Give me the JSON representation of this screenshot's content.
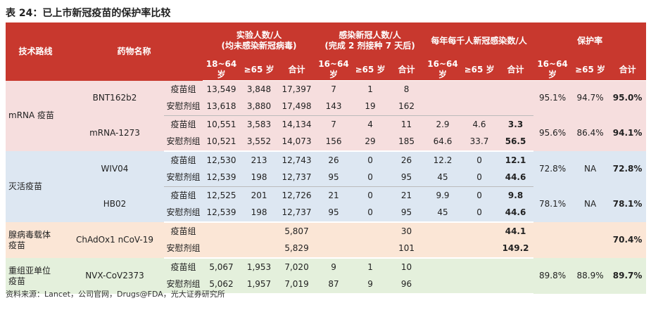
{
  "title": "表 24：已上市新冠疫苗的保护率比较",
  "header": {
    "route": "技术路线",
    "drug": "药物名称",
    "groups": [
      "实验人数/人\n(均未感染新冠病毒)",
      "感染新冠人数/人\n(完成 2 剂接种 7 天后)",
      "每年每千人新冠感染数/人",
      "保护率"
    ],
    "sub": [
      "18~64 岁",
      "≥65 岁",
      "合计",
      "16~64 岁",
      "≥65 岁",
      "合计",
      "16~64 岁",
      "≥65 岁",
      "合计",
      "16~64 岁",
      "≥65 岁",
      "合计"
    ]
  },
  "sections": [
    {
      "route": "mRNA 疫苗",
      "drugs": [
        {
          "name": "BNT162b2",
          "protection": [
            "95.1%",
            "94.7%",
            "95.0%"
          ],
          "rows": [
            {
              "group": "疫苗组",
              "trial": [
                "13,549",
                "3,848",
                "17,397"
              ],
              "infected": [
                "7",
                "1",
                "8"
              ],
              "per_thousand": [
                null,
                null,
                null
              ]
            },
            {
              "group": "安慰剂组",
              "trial": [
                "13,618",
                "3,880",
                "17,498"
              ],
              "infected": [
                "143",
                "19",
                "162"
              ],
              "per_thousand": [
                null,
                null,
                null
              ]
            }
          ]
        },
        {
          "name": "mRNA-1273",
          "protection": [
            "95.6%",
            "86.4%",
            "94.1%"
          ],
          "rows": [
            {
              "group": "疫苗组",
              "trial": [
                "10,551",
                "3,583",
                "14,134"
              ],
              "infected": [
                "7",
                "4",
                "11"
              ],
              "per_thousand": [
                "2.9",
                "4.6",
                "3.3"
              ]
            },
            {
              "group": "安慰剂组",
              "trial": [
                "10,521",
                "3,552",
                "14,073"
              ],
              "infected": [
                "156",
                "29",
                "185"
              ],
              "per_thousand": [
                "64.6",
                "33.7",
                "56.5"
              ]
            }
          ]
        }
      ]
    },
    {
      "route": "灭活疫苗",
      "drugs": [
        {
          "name": "WIV04",
          "protection": [
            "72.8%",
            "NA",
            "72.8%"
          ],
          "rows": [
            {
              "group": "疫苗组",
              "trial": [
                "12,530",
                "213",
                "12,743"
              ],
              "infected": [
                "26",
                "0",
                "26"
              ],
              "per_thousand": [
                "12.2",
                "0",
                "12.1"
              ]
            },
            {
              "group": "安慰剂组",
              "trial": [
                "12,539",
                "198",
                "12,737"
              ],
              "infected": [
                "95",
                "0",
                "95"
              ],
              "per_thousand": [
                "45",
                "0",
                "44.6"
              ]
            }
          ]
        },
        {
          "name": "HB02",
          "protection": [
            "78.1%",
            "NA",
            "78.1%"
          ],
          "rows": [
            {
              "group": "疫苗组",
              "trial": [
                "12,525",
                "201",
                "12,726"
              ],
              "infected": [
                "21",
                "0",
                "21"
              ],
              "per_thousand": [
                "9.9",
                "0",
                "9.8"
              ]
            },
            {
              "group": "安慰剂组",
              "trial": [
                "12,539",
                "198",
                "12,737"
              ],
              "infected": [
                "95",
                "0",
                "95"
              ],
              "per_thousand": [
                "45",
                "0",
                "44.6"
              ]
            }
          ]
        }
      ]
    },
    {
      "route": "腺病毒载体\n疫苗",
      "drugs": [
        {
          "name": "ChAdOx1 nCoV-19",
          "protection": [
            null,
            null,
            "70.4%"
          ],
          "rows": [
            {
              "group": "疫苗组",
              "trial": [
                null,
                null,
                "5,807"
              ],
              "infected": [
                null,
                null,
                "30"
              ],
              "per_thousand": [
                null,
                null,
                "44.1"
              ]
            },
            {
              "group": "安慰剂组",
              "trial": [
                null,
                null,
                "5,829"
              ],
              "infected": [
                null,
                null,
                "101"
              ],
              "per_thousand": [
                null,
                null,
                "149.2"
              ]
            }
          ]
        }
      ]
    },
    {
      "route": "重组亚单位\n疫苗",
      "drugs": [
        {
          "name": "NVX-CoV2373",
          "protection": [
            "89.8%",
            "88.9%",
            "89.7%"
          ],
          "rows": [
            {
              "group": "疫苗组",
              "trial": [
                "5,067",
                "1,953",
                "7,020"
              ],
              "infected": [
                "9",
                "1",
                "10"
              ],
              "per_thousand": [
                null,
                null,
                null
              ]
            },
            {
              "group": "安慰剂组",
              "trial": [
                "5,062",
                "1,957",
                "7,019"
              ],
              "infected": [
                "87",
                "9",
                "96"
              ],
              "per_thousand": [
                null,
                null,
                null
              ]
            }
          ]
        }
      ]
    }
  ],
  "source": "资料来源：Lancet，公司官网，Drugs@FDA，光大证券研究所"
}
